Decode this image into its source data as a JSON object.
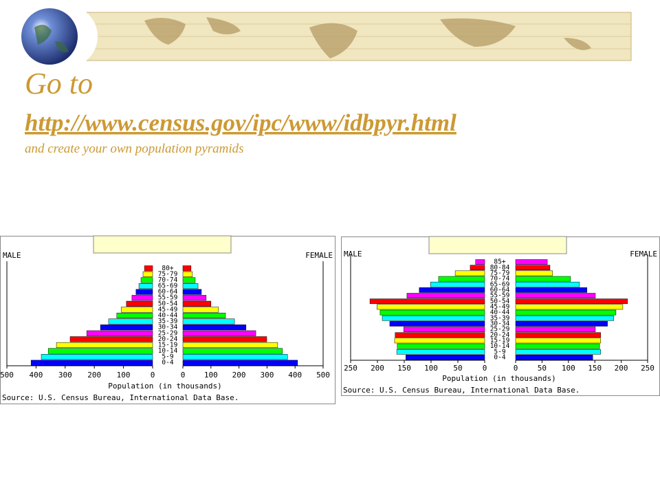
{
  "header": {
    "title": "Go to",
    "link": "http://www.census.gov/ipc/www/idbpyr.html",
    "subtitle": "and create your own population pyramids"
  },
  "chart_data": [
    {
      "type": "pyramid",
      "xlabel": "Population (in thousands)",
      "source": "Source: U.S. Census Bureau, International Data Base.",
      "categories": [
        "0-4",
        "5-9",
        "10-14",
        "15-19",
        "20-24",
        "25-29",
        "30-34",
        "35-39",
        "40-44",
        "45-49",
        "50-54",
        "55-59",
        "60-64",
        "65-69",
        "70-74",
        "75-79",
        "80+"
      ],
      "series": [
        {
          "name": "MALE",
          "values": [
            417,
            382,
            358,
            330,
            283,
            226,
            179,
            151,
            123,
            108,
            90,
            71,
            57,
            47,
            40,
            33,
            28
          ]
        },
        {
          "name": "FEMALE",
          "values": [
            409,
            373,
            355,
            338,
            299,
            260,
            225,
            184,
            152,
            127,
            100,
            83,
            66,
            54,
            44,
            34,
            29
          ]
        }
      ],
      "colors": [
        "#0000ff",
        "#00ffff",
        "#00ff00",
        "#ffff00",
        "#ff0000",
        "#ff00ff"
      ],
      "xlim": [
        0,
        500
      ],
      "xticks": [
        0,
        100,
        200,
        300,
        400,
        500
      ]
    },
    {
      "type": "pyramid",
      "xlabel": "Population (in thousands)",
      "source": "Source: U.S. Census Bureau, International Data Base.",
      "categories": [
        "0-4",
        "5-9",
        "10-14",
        "15-19",
        "20-24",
        "25-29",
        "30-34",
        "35-39",
        "40-44",
        "45-49",
        "50-54",
        "55-59",
        "60-64",
        "65-69",
        "70-74",
        "75-79",
        "80-84",
        "85+"
      ],
      "series": [
        {
          "name": "MALE",
          "values": [
            147,
            164,
            163,
            168,
            167,
            151,
            177,
            191,
            195,
            201,
            214,
            145,
            122,
            101,
            86,
            55,
            27,
            17
          ]
        },
        {
          "name": "FEMALE",
          "values": [
            146,
            161,
            159,
            161,
            161,
            151,
            174,
            186,
            190,
            203,
            212,
            151,
            135,
            121,
            104,
            70,
            65,
            60
          ]
        }
      ],
      "colors": [
        "#0000ff",
        "#00ffff",
        "#00ff00",
        "#ffff00",
        "#ff0000",
        "#ff00ff"
      ],
      "xlim": [
        0,
        250
      ],
      "xticks": [
        0,
        50,
        100,
        150,
        200,
        250
      ]
    }
  ]
}
